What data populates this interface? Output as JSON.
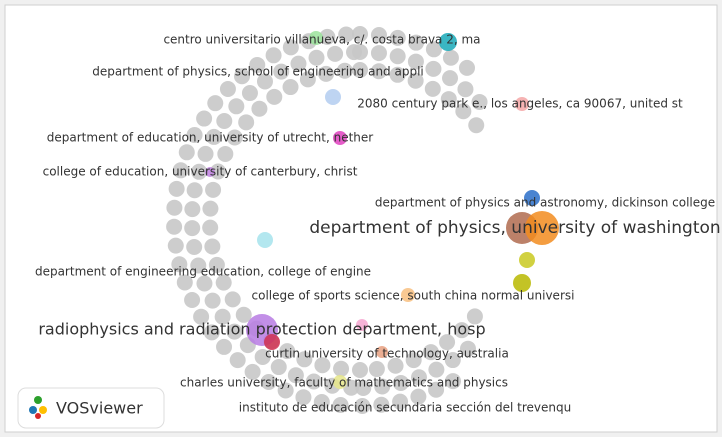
{
  "labels": [
    "centro universitario villanueva, c/. costa brava 2, ma",
    "department of physics, school of engineering and appli",
    "2080 century park e., los angeles, ca 90067, united st",
    "department of education, university of utrecht, nether",
    "college of education, university of canterbury, christ",
    "department of physics and astronomy, dickinson college",
    "department of physics, university of washington",
    "department of engineering education, college of engine",
    "college of sports science, south china normal universi",
    "radiophysics and radiation protection department, hosp",
    "curtin university of technology, australia",
    "charles university, faculty of mathematics and physics",
    "instituto de educación secundaria sección del trevenqu"
  ],
  "logo": "VOSviewer"
}
